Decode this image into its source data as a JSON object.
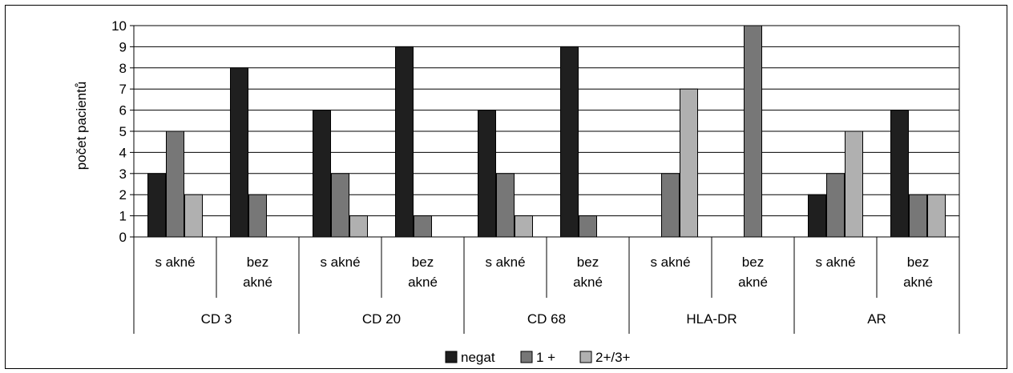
{
  "chart_data": {
    "type": "bar",
    "ylabel": "počet pacientů",
    "ylim": [
      0,
      10
    ],
    "yticks": [
      0,
      1,
      2,
      3,
      4,
      5,
      6,
      7,
      8,
      9,
      10
    ],
    "grid": true,
    "legend_position": "bottom",
    "groups": [
      "CD 3",
      "CD 20",
      "CD 68",
      "HLA-DR",
      "AR"
    ],
    "subcategories": [
      [
        "s akné"
      ],
      [
        "bez",
        "akné"
      ]
    ],
    "categories": [
      "CD 3 s akné",
      "CD 3 bez akné",
      "CD 20 s akné",
      "CD 20 bez akné",
      "CD 68 s akné",
      "CD 68 bez akné",
      "HLA-DR s akné",
      "HLA-DR bez akné",
      "AR s akné",
      "AR bez akné"
    ],
    "series": [
      {
        "name": "negat",
        "color": "#1f1f1f",
        "values": [
          3,
          8,
          6,
          9,
          6,
          9,
          0,
          0,
          2,
          6
        ]
      },
      {
        "name": "1 +",
        "color": "#777777",
        "values": [
          5,
          2,
          3,
          1,
          3,
          1,
          3,
          10,
          3,
          2
        ]
      },
      {
        "name": "2+/3+",
        "color": "#b0b0b0",
        "values": [
          2,
          0,
          1,
          0,
          1,
          0,
          7,
          0,
          5,
          2
        ]
      }
    ]
  }
}
